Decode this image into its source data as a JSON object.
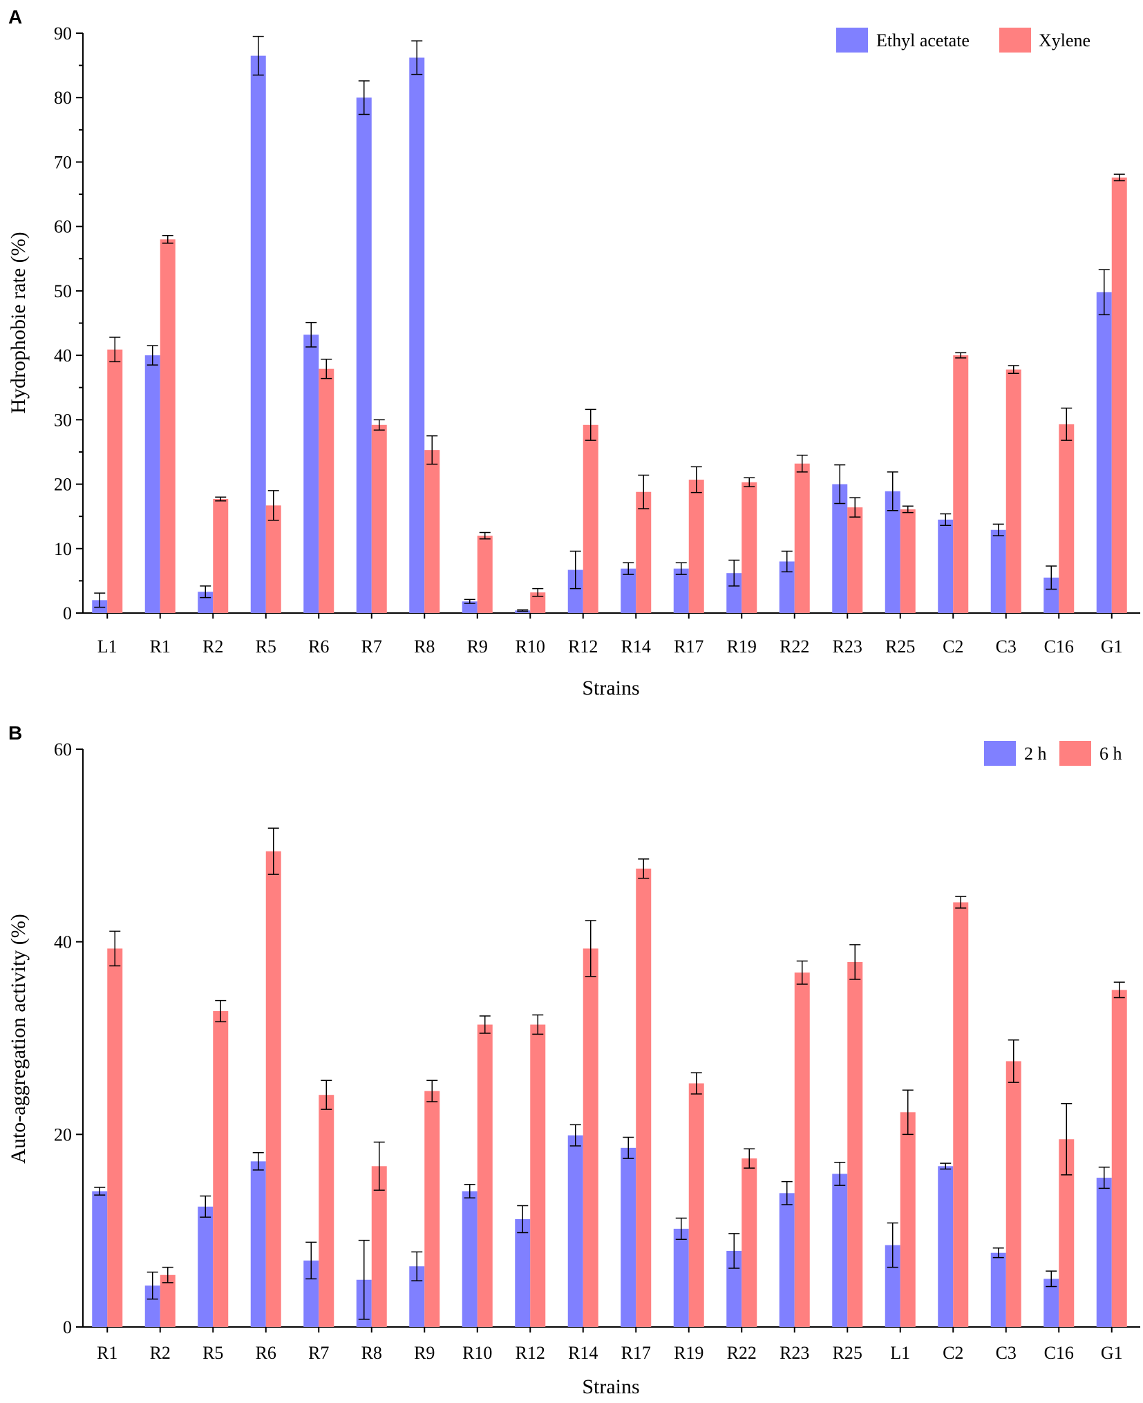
{
  "chart_data": [
    {
      "panel": "A",
      "type": "bar",
      "title": "",
      "xlabel": "Strains",
      "ylabel": "Hydrophobie rate (%)",
      "ylim": [
        0,
        90
      ],
      "yticks": [
        0,
        10,
        20,
        30,
        40,
        50,
        60,
        70,
        80,
        90
      ],
      "legend_position": "top-right",
      "categories": [
        "L1",
        "R1",
        "R2",
        "R5",
        "R6",
        "R7",
        "R8",
        "R9",
        "R10",
        "R12",
        "R14",
        "R17",
        "R19",
        "R22",
        "R23",
        "R25",
        "C2",
        "C3",
        "C16",
        "G1"
      ],
      "series": [
        {
          "name": "Ethyl acetate",
          "color": "#8080ff",
          "values": [
            2.0,
            40.0,
            3.3,
            86.5,
            43.2,
            80.0,
            86.2,
            1.8,
            0.4,
            6.7,
            6.9,
            6.9,
            6.2,
            8.0,
            20.0,
            18.9,
            14.5,
            12.9,
            5.5,
            49.8
          ],
          "errors": [
            1.1,
            1.5,
            0.9,
            3.0,
            1.9,
            2.6,
            2.6,
            0.3,
            0.1,
            2.9,
            0.9,
            0.9,
            2.0,
            1.6,
            3.0,
            3.0,
            0.9,
            0.9,
            1.8,
            3.5
          ]
        },
        {
          "name": "Xylene",
          "color": "#ff8080",
          "values": [
            40.9,
            58.0,
            17.7,
            16.7,
            37.9,
            29.2,
            25.3,
            12.0,
            3.2,
            29.2,
            18.8,
            20.7,
            20.3,
            23.2,
            16.4,
            16.1,
            40.0,
            37.8,
            29.3,
            67.6
          ],
          "errors": [
            1.9,
            0.6,
            0.3,
            2.3,
            1.5,
            0.8,
            2.2,
            0.5,
            0.6,
            2.4,
            2.6,
            2.0,
            0.7,
            1.3,
            1.5,
            0.5,
            0.4,
            0.6,
            2.5,
            0.5
          ]
        }
      ]
    },
    {
      "panel": "B",
      "type": "bar",
      "title": "",
      "xlabel": "Strains",
      "ylabel": "Auto-aggregation activity (%)",
      "ylim": [
        0,
        60
      ],
      "yticks": [
        0,
        20,
        40,
        60
      ],
      "legend_position": "top-right",
      "categories": [
        "R1",
        "R2",
        "R5",
        "R6",
        "R7",
        "R8",
        "R9",
        "R10",
        "R12",
        "R14",
        "R17",
        "R19",
        "R22",
        "R23",
        "R25",
        "L1",
        "C2",
        "C3",
        "C16",
        "G1"
      ],
      "series": [
        {
          "name": "2 h",
          "color": "#8080ff",
          "values": [
            14.1,
            4.3,
            12.5,
            17.2,
            6.9,
            4.9,
            6.3,
            14.1,
            11.2,
            19.9,
            18.6,
            10.2,
            7.9,
            13.9,
            15.9,
            8.5,
            16.7,
            7.7,
            5.0,
            15.5
          ],
          "errors": [
            0.4,
            1.4,
            1.1,
            0.9,
            1.9,
            4.1,
            1.5,
            0.7,
            1.4,
            1.1,
            1.1,
            1.1,
            1.8,
            1.2,
            1.2,
            2.3,
            0.3,
            0.5,
            0.8,
            1.1
          ]
        },
        {
          "name": "6 h",
          "color": "#ff8080",
          "values": [
            39.3,
            5.4,
            32.8,
            49.4,
            24.1,
            16.7,
            24.5,
            31.4,
            31.4,
            39.3,
            47.6,
            25.3,
            17.5,
            36.8,
            37.9,
            22.3,
            44.1,
            27.6,
            19.5,
            35.0
          ],
          "errors": [
            1.8,
            0.8,
            1.1,
            2.4,
            1.5,
            2.5,
            1.1,
            0.9,
            1.0,
            2.9,
            1.0,
            1.1,
            1.0,
            1.2,
            1.8,
            2.3,
            0.6,
            2.2,
            3.7,
            0.8
          ]
        }
      ]
    }
  ]
}
